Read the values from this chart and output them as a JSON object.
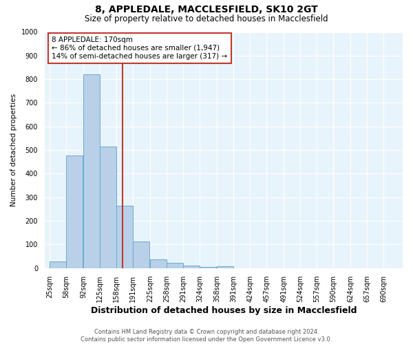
{
  "title": "8, APPLEDALE, MACCLESFIELD, SK10 2GT",
  "subtitle": "Size of property relative to detached houses in Macclesfield",
  "xlabel": "Distribution of detached houses by size in Macclesfield",
  "ylabel": "Number of detached properties",
  "footer_line1": "Contains HM Land Registry data © Crown copyright and database right 2024.",
  "footer_line2": "Contains public sector information licensed under the Open Government Licence v3.0.",
  "bin_labels": [
    "25sqm",
    "58sqm",
    "92sqm",
    "125sqm",
    "158sqm",
    "191sqm",
    "225sqm",
    "258sqm",
    "291sqm",
    "324sqm",
    "358sqm",
    "391sqm",
    "424sqm",
    "457sqm",
    "491sqm",
    "524sqm",
    "557sqm",
    "590sqm",
    "624sqm",
    "657sqm",
    "690sqm"
  ],
  "bar_values": [
    28,
    478,
    820,
    515,
    265,
    112,
    37,
    22,
    10,
    6,
    9,
    0,
    0,
    0,
    0,
    0,
    0,
    0,
    0,
    0,
    0
  ],
  "bar_color": "#b8d0e8",
  "bar_edge_color": "#6aaad4",
  "vline_color": "#c0392b",
  "annotation_text": "8 APPLEDALE: 170sqm\n← 86% of detached houses are smaller (1,947)\n14% of semi-detached houses are larger (317) →",
  "annotation_box_facecolor": "white",
  "annotation_box_edgecolor": "#c0392b",
  "ylim": [
    0,
    1000
  ],
  "property_size_sqm": 170,
  "plot_bg_color": "#e8f4fb",
  "grid_color": "white",
  "title_fontsize": 10,
  "subtitle_fontsize": 8.5,
  "ylabel_fontsize": 7.5,
  "xlabel_fontsize": 9,
  "tick_fontsize": 7,
  "annot_fontsize": 7.5,
  "footer_fontsize": 6,
  "footer_color": "#555555"
}
